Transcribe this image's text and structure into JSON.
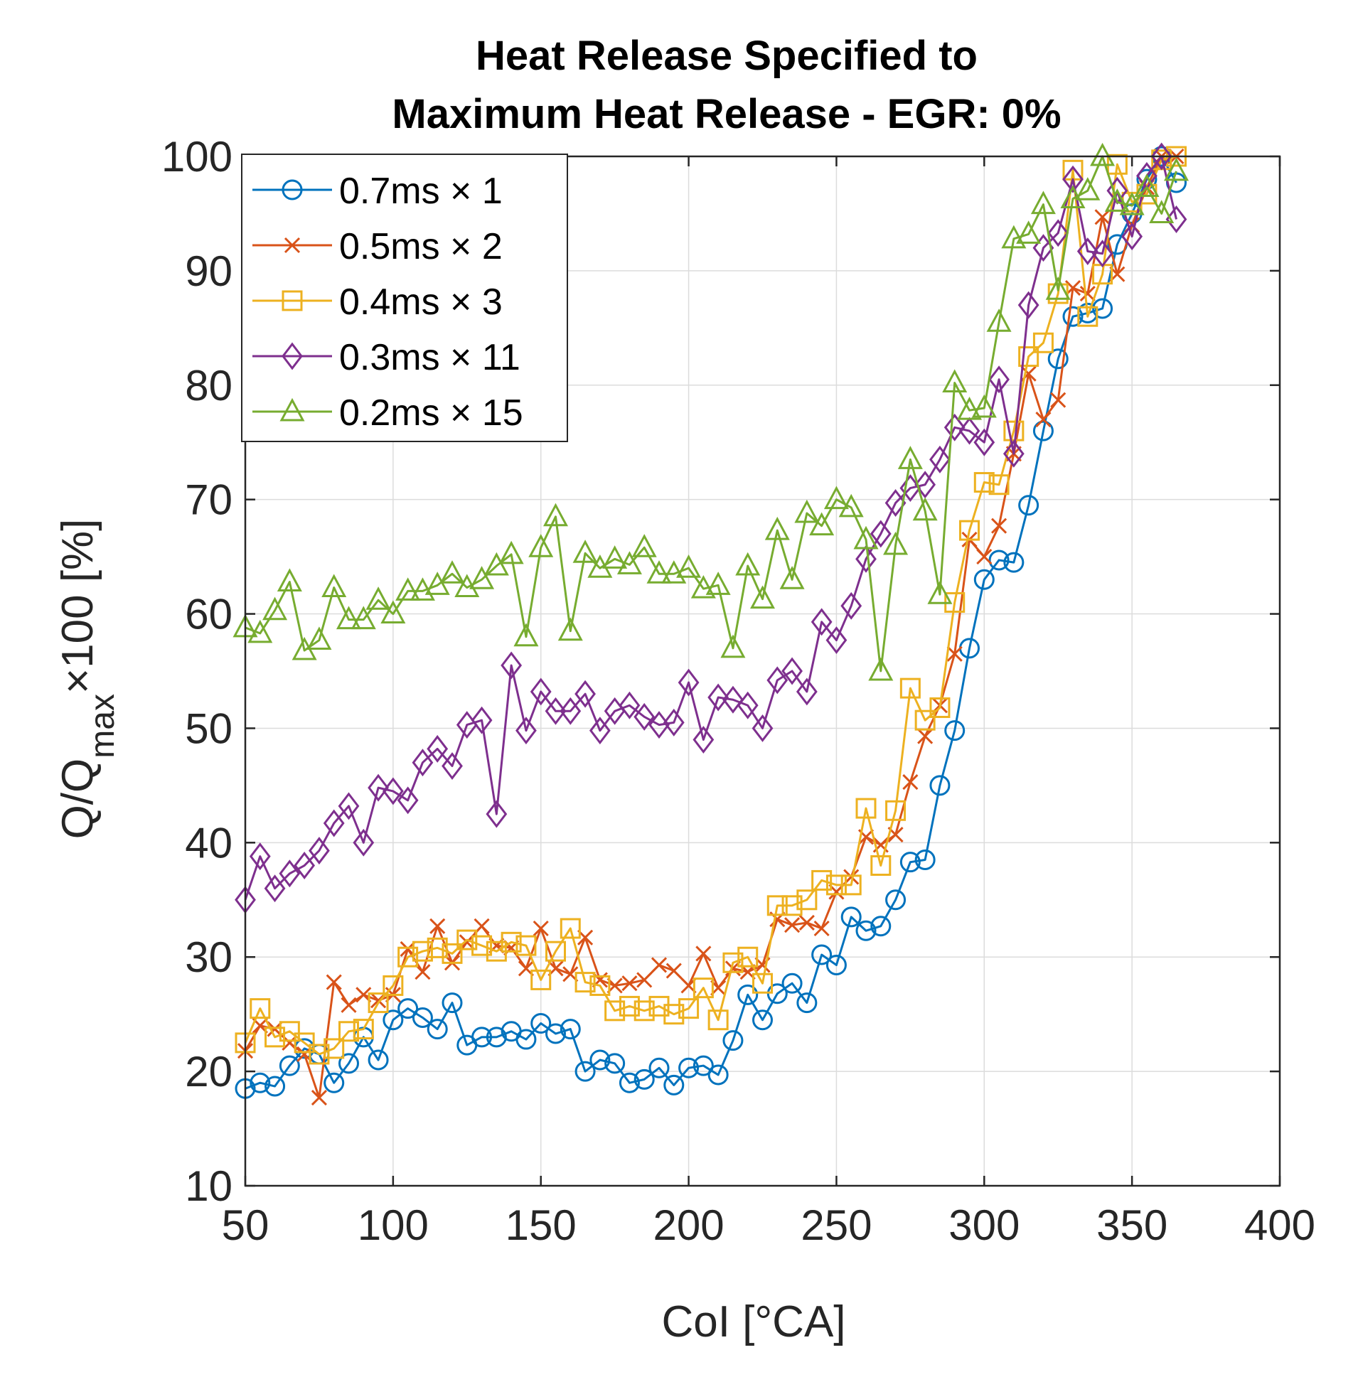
{
  "chart_data": {
    "type": "line",
    "title": [
      "Heat Release Specified to",
      "Maximum Heat Release - EGR: 0%"
    ],
    "xlabel": "CoI [°CA]",
    "ylabel": {
      "main": "Q/Q",
      "sub": "max",
      "suffix": "×100 [%]"
    },
    "xlim": [
      50,
      400
    ],
    "ylim": [
      10,
      100
    ],
    "xticks": [
      50,
      100,
      150,
      200,
      250,
      300,
      350,
      400
    ],
    "yticks": [
      10,
      20,
      30,
      40,
      50,
      60,
      70,
      80,
      90,
      100
    ],
    "grid": true,
    "legend_position": "top-left",
    "x": [
      50,
      55,
      60,
      65,
      70,
      75,
      80,
      85,
      90,
      95,
      100,
      105,
      110,
      115,
      120,
      125,
      130,
      135,
      140,
      145,
      150,
      155,
      160,
      165,
      170,
      175,
      180,
      185,
      190,
      195,
      200,
      205,
      210,
      215,
      220,
      225,
      230,
      235,
      240,
      245,
      250,
      255,
      260,
      265,
      270,
      275,
      280,
      285,
      290,
      295,
      300,
      305,
      310,
      315,
      320,
      325,
      330,
      335,
      340,
      345,
      350,
      355,
      360,
      365
    ],
    "series": [
      {
        "name": "0.7ms × 1",
        "color": "#0072BD",
        "marker": "circle",
        "values": [
          18.5,
          19.0,
          18.7,
          20.5,
          22.0,
          21.5,
          19.0,
          20.7,
          23.0,
          21.0,
          24.5,
          25.5,
          24.7,
          23.7,
          26.0,
          22.3,
          23.0,
          23.0,
          23.5,
          22.8,
          24.2,
          23.3,
          23.7,
          20.0,
          21.0,
          20.7,
          19.0,
          19.3,
          20.3,
          18.8,
          20.3,
          20.5,
          19.7,
          22.7,
          26.7,
          24.5,
          26.8,
          27.7,
          26.0,
          30.2,
          29.3,
          33.5,
          32.3,
          32.7,
          35.0,
          38.3,
          38.5,
          45.0,
          49.8,
          57.0,
          63.0,
          64.7,
          64.5,
          69.5,
          76.0,
          82.3,
          86.0,
          86.3,
          86.7,
          92.3,
          95.0,
          98.0,
          100.0,
          97.7
        ]
      },
      {
        "name": "0.5ms × 2",
        "color": "#D95319",
        "marker": "x",
        "values": [
          21.8,
          24.0,
          23.7,
          22.5,
          21.5,
          17.7,
          27.8,
          25.8,
          26.7,
          26.2,
          26.7,
          30.7,
          28.7,
          32.7,
          29.5,
          31.3,
          32.7,
          31.0,
          30.8,
          29.0,
          32.5,
          29.0,
          28.5,
          31.7,
          28.0,
          27.5,
          27.7,
          28.0,
          29.3,
          28.8,
          27.5,
          30.3,
          27.3,
          29.0,
          28.7,
          29.3,
          33.3,
          32.8,
          33.0,
          32.5,
          35.7,
          37.0,
          40.5,
          39.8,
          40.7,
          45.3,
          49.3,
          52.0,
          56.5,
          66.5,
          65.0,
          67.7,
          74.0,
          81.0,
          77.0,
          78.7,
          88.5,
          88.0,
          94.7,
          89.7,
          94.0,
          97.3,
          100.0,
          100.0
        ]
      },
      {
        "name": "0.4ms × 3",
        "color": "#EDB120",
        "marker": "square",
        "values": [
          22.5,
          25.5,
          23.0,
          23.5,
          22.5,
          21.5,
          22.0,
          23.5,
          23.7,
          26.0,
          27.5,
          30.0,
          30.5,
          30.8,
          30.3,
          31.5,
          31.0,
          30.5,
          31.3,
          31.0,
          28.0,
          30.5,
          32.5,
          27.8,
          27.5,
          25.3,
          25.7,
          25.3,
          25.7,
          25.0,
          25.5,
          27.3,
          24.5,
          29.5,
          30.0,
          27.7,
          34.5,
          34.5,
          35.0,
          36.7,
          36.3,
          36.3,
          43.0,
          38.0,
          42.8,
          53.5,
          50.7,
          51.8,
          61.0,
          67.3,
          71.5,
          71.3,
          76.0,
          82.5,
          83.7,
          88.0,
          98.8,
          86.0,
          89.7,
          99.3,
          96.0,
          96.7,
          99.7,
          100.0
        ]
      },
      {
        "name": "0.3ms × 11",
        "color": "#7E2F8E",
        "marker": "diamond",
        "values": [
          35.0,
          38.8,
          36.0,
          37.3,
          38.0,
          39.3,
          41.7,
          43.2,
          40.0,
          44.8,
          44.5,
          43.7,
          47.0,
          48.2,
          46.7,
          50.3,
          50.7,
          42.5,
          55.5,
          49.8,
          53.2,
          51.5,
          51.5,
          53.0,
          49.8,
          51.5,
          52.0,
          51.0,
          50.3,
          50.5,
          54.0,
          49.0,
          52.7,
          52.5,
          52.0,
          50.0,
          54.2,
          55.0,
          53.2,
          59.3,
          57.7,
          60.7,
          64.8,
          67.0,
          69.7,
          71.0,
          71.3,
          73.5,
          76.3,
          76.0,
          75.0,
          80.5,
          74.0,
          87.0,
          92.0,
          93.3,
          98.0,
          91.7,
          91.5,
          97.0,
          93.0,
          98.3,
          100.0,
          94.5
        ]
      },
      {
        "name": "0.2ms × 15",
        "color": "#77AC30",
        "marker": "triangle",
        "values": [
          58.8,
          58.3,
          60.3,
          62.8,
          56.8,
          57.7,
          62.3,
          59.5,
          59.5,
          61.2,
          60.0,
          62.0,
          62.0,
          62.5,
          63.5,
          62.3,
          63.0,
          64.2,
          65.2,
          58.0,
          65.8,
          68.5,
          58.5,
          65.3,
          64.0,
          64.8,
          64.3,
          65.8,
          63.5,
          63.5,
          64.0,
          62.2,
          62.5,
          57.0,
          64.2,
          61.3,
          67.3,
          63.0,
          68.8,
          67.7,
          70.0,
          69.3,
          66.5,
          55.0,
          66.0,
          73.5,
          69.0,
          61.7,
          80.2,
          77.8,
          78.0,
          85.5,
          92.8,
          93.2,
          95.8,
          88.3,
          96.3,
          97.0,
          100.0,
          96.0,
          95.7,
          97.3,
          95.0,
          98.7
        ]
      }
    ]
  }
}
